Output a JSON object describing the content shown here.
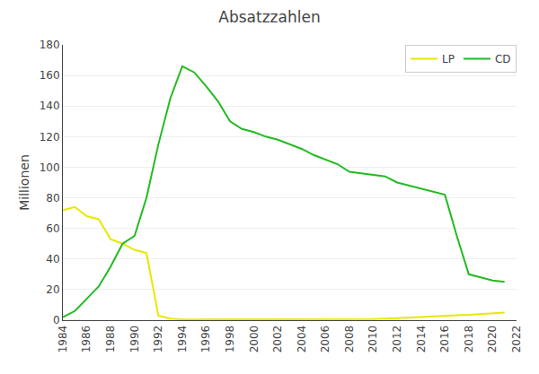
{
  "chart_data": {
    "type": "line",
    "title": "Absatzzahlen",
    "y_label": "Millionen",
    "x": [
      1984,
      1985,
      1986,
      1987,
      1988,
      1989,
      1990,
      1991,
      1992,
      1993,
      1994,
      1995,
      1996,
      1997,
      1998,
      1999,
      2000,
      2001,
      2002,
      2003,
      2004,
      2005,
      2006,
      2007,
      2008,
      2009,
      2010,
      2011,
      2012,
      2013,
      2014,
      2015,
      2016,
      2017,
      2018,
      2019,
      2020,
      2021
    ],
    "series": [
      {
        "name": "LP",
        "color": "#e8e800",
        "values": [
          72,
          74,
          68,
          66,
          53,
          50,
          46,
          44,
          3,
          1,
          0.5,
          0.5,
          0.5,
          0.5,
          0.5,
          0.5,
          0.5,
          0.5,
          0.5,
          0.5,
          0.5,
          0.5,
          0.5,
          0.5,
          0.5,
          0.5,
          0.8,
          1.0,
          1.2,
          1.5,
          2.0,
          2.5,
          3.0,
          3.2,
          3.5,
          4.0,
          4.5,
          5.0
        ]
      },
      {
        "name": "CD",
        "color": "#22bb22",
        "values": [
          2,
          6,
          14,
          22,
          35,
          50,
          55,
          80,
          115,
          145,
          166,
          162,
          153,
          143,
          130,
          125,
          123,
          120,
          118,
          115,
          112,
          108,
          105,
          102,
          97,
          96,
          95,
          94,
          90,
          88,
          86,
          84,
          82,
          55,
          30,
          28,
          26,
          25
        ]
      }
    ],
    "xlim": [
      1984,
      2022
    ],
    "xticks": [
      1984,
      1986,
      1988,
      1990,
      1992,
      1994,
      1996,
      1998,
      2000,
      2002,
      2004,
      2006,
      2008,
      2010,
      2012,
      2014,
      2016,
      2018,
      2020,
      2022
    ],
    "ylim": [
      0,
      180
    ],
    "yticks": [
      0,
      20,
      40,
      60,
      80,
      100,
      120,
      140,
      160,
      180
    ],
    "grid": "y",
    "legend": "upper right"
  }
}
